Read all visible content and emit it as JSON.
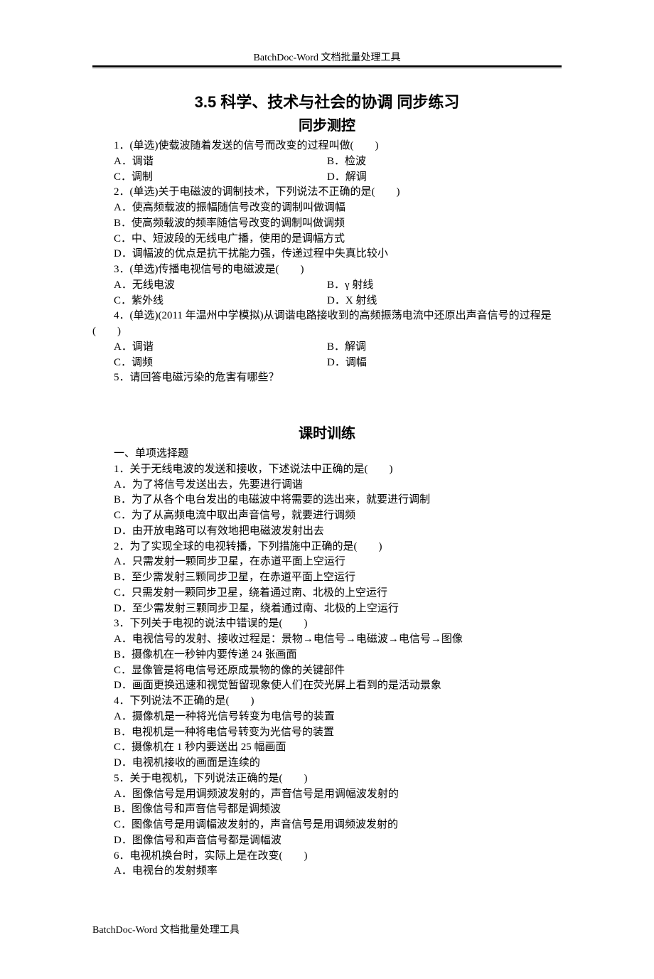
{
  "header": "BatchDoc-Word 文档批量处理工具",
  "footer": "BatchDoc-Word 文档批量处理工具",
  "mainTitle": "3.5 科学、技术与社会的协调 同步练习",
  "subTitle": "同步测控",
  "sectionTitle2": "课时训练",
  "sec1": {
    "q1": {
      "stem": "1．(单选)使载波随着发送的信号而改变的过程叫做(　　)",
      "a": "A．调谐",
      "b": "B．检波",
      "c": "C．调制",
      "d": "D．解调"
    },
    "q2": {
      "stem": "2．(单选)关于电磁波的调制技术，下列说法不正确的是(　　)",
      "a": "A．使高频载波的振幅随信号改变的调制叫做调幅",
      "b": "B．使高频载波的频率随信号改变的调制叫做调频",
      "c": "C．中、短波段的无线电广播，使用的是调幅方式",
      "d": "D．调幅波的优点是抗干扰能力强，传递过程中失真比较小"
    },
    "q3": {
      "stem": "3．(单选)传播电视信号的电磁波是(　　)",
      "a": "A．无线电波",
      "b": "B．γ 射线",
      "c": "C．紫外线",
      "d": "D．X 射线"
    },
    "q4": {
      "stem": "4．(单选)(2011 年温州中学模拟)从调谐电路接收到的高频振荡电流中还原出声音信号的过程是(　　)",
      "a": "A．调谐",
      "b": "B．解调",
      "c": "C．调频",
      "d": "D．调幅"
    },
    "q5": "5．请回答电磁污染的危害有哪些？"
  },
  "sec2": {
    "heading": "一、单项选择题",
    "q1": {
      "stem": "1．关于无线电波的发送和接收，下述说法中正确的是(　　)",
      "a": "A．为了将信号发送出去，先要进行调谐",
      "b": "B．为了从各个电台发出的电磁波中将需要的选出来，就要进行调制",
      "c": "C．为了从高频电流中取出声音信号，就要进行调频",
      "d": "D．由开放电路可以有效地把电磁波发射出去"
    },
    "q2": {
      "stem": "2．为了实现全球的电视转播，下列措施中正确的是(　　)",
      "a": "A．只需发射一颗同步卫星，在赤道平面上空运行",
      "b": "B．至少需发射三颗同步卫星，在赤道平面上空运行",
      "c": "C．只需发射一颗同步卫星，绕着通过南、北极的上空运行",
      "d": "D．至少需发射三颗同步卫星，绕着通过南、北极的上空运行"
    },
    "q3": {
      "stem": "3．下列关于电视的说法中错误的是(　　)",
      "a": "A．电视信号的发射、接收过程是：景物→电信号→电磁波→电信号→图像",
      "b": "B．摄像机在一秒钟内要传递 24 张画面",
      "c": "C．显像管是将电信号还原成景物的像的关键部件",
      "d": "D．画面更换迅速和视觉暂留现象使人们在荧光屏上看到的是活动景象"
    },
    "q4": {
      "stem": "4．下列说法不正确的是(　　)",
      "a": "A．摄像机是一种将光信号转变为电信号的装置",
      "b": "B．电视机是一种将电信号转变为光信号的装置",
      "c": "C．摄像机在 1 秒内要送出 25 幅画面",
      "d": "D．电视机接收的画面是连续的"
    },
    "q5": {
      "stem": "5．关于电视机，下列说法正确的是(　　)",
      "a": "A．图像信号是用调频波发射的，声音信号是用调幅波发射的",
      "b": "B．图像信号和声音信号都是调频波",
      "c": "C．图像信号是用调幅波发射的，声音信号是用调频波发射的",
      "d": "D．图像信号和声音信号都是调幅波"
    },
    "q6": {
      "stem": "6．电视机换台时，实际上是在改变(　　)",
      "a": "A．电视台的发射频率"
    }
  },
  "style": {
    "pageWidth": 920,
    "pageHeight": 1302,
    "bodyFontSize": 15,
    "titleFontSize": 22,
    "subTitleFontSize": 20,
    "headerFontSize": 14,
    "textColor": "#000000",
    "bgColor": "#ffffff",
    "lineHeight": 1.45,
    "indentEm": 2,
    "optionLeftWidth": 300
  }
}
